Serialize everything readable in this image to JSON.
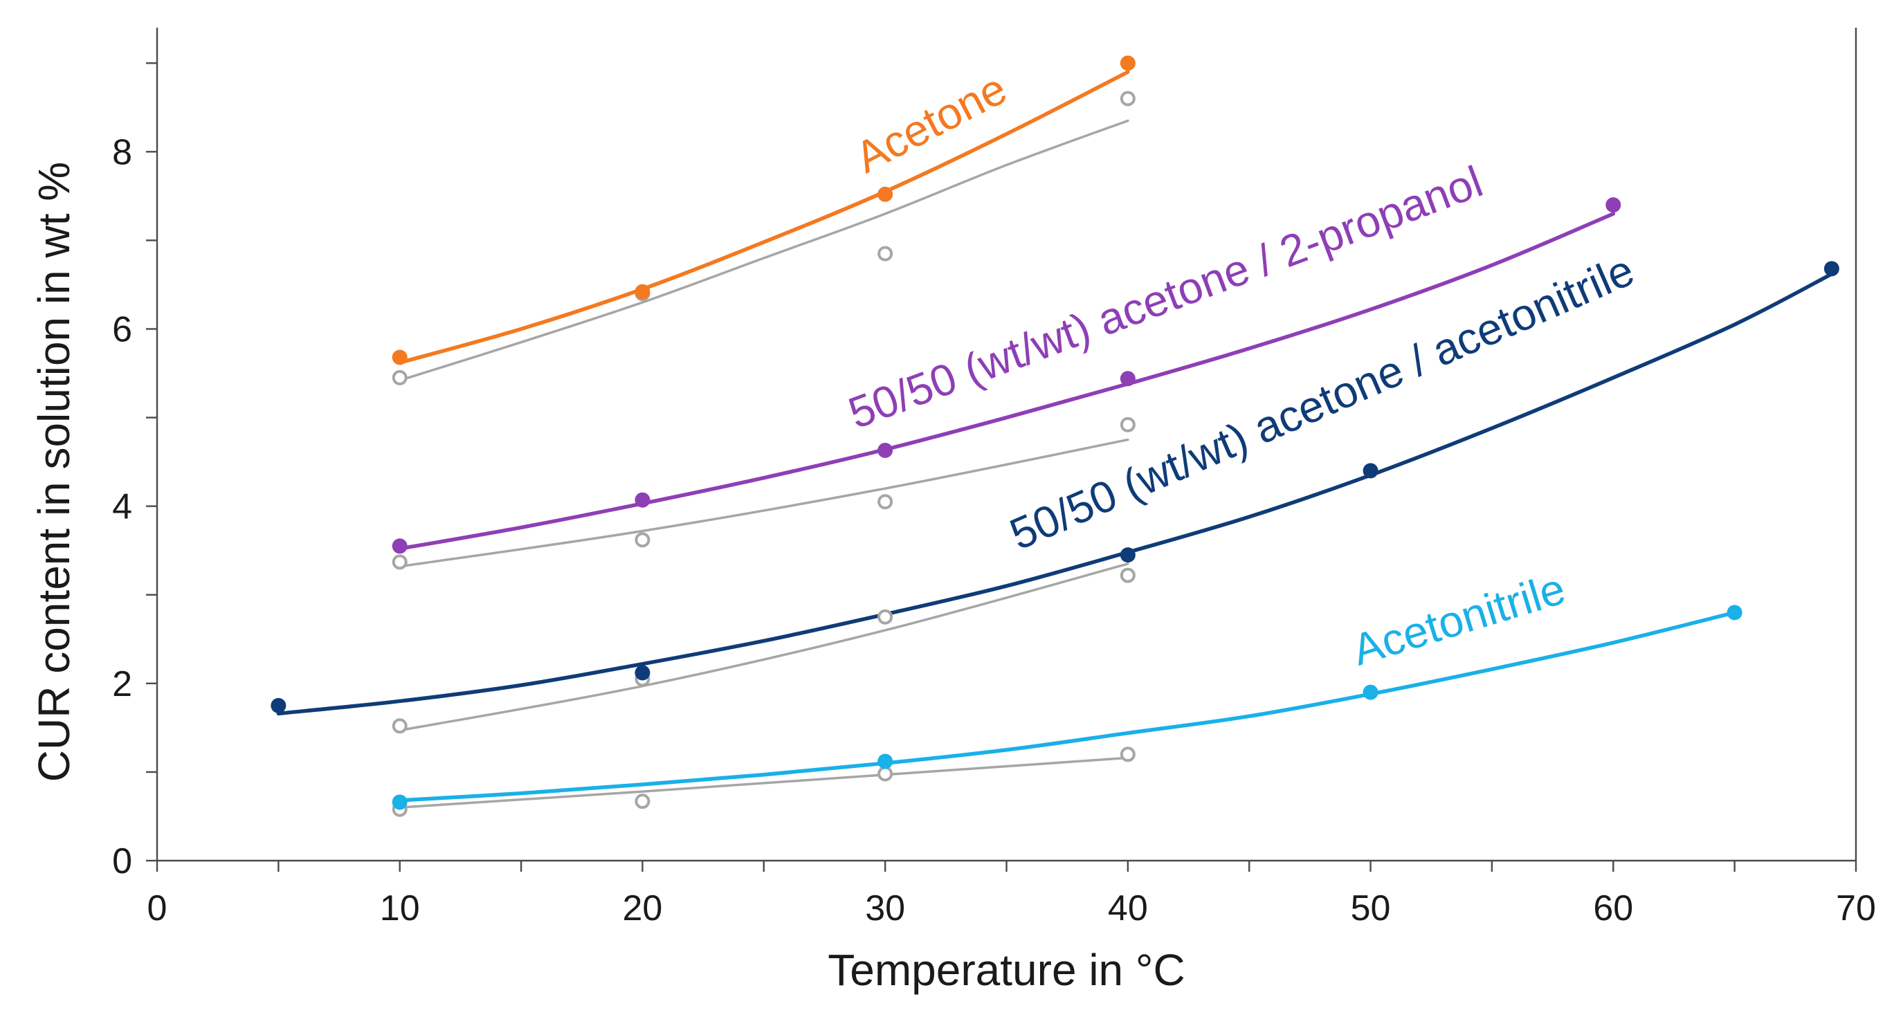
{
  "chart_data": {
    "type": "scatter",
    "title": "",
    "xlabel": "Temperature in °C",
    "ylabel": "CUR content in solution in wt %",
    "xlim": [
      0,
      70
    ],
    "ylim": [
      0,
      9.4
    ],
    "x_ticks": [
      0,
      10,
      20,
      30,
      40,
      50,
      60,
      70
    ],
    "y_ticks": [
      0,
      2,
      4,
      6,
      8
    ],
    "grid": false,
    "legend": "none",
    "series": [
      {
        "name": "Acetone",
        "color": "#f47920",
        "marker": "filled",
        "x": [
          10,
          20,
          30,
          40
        ],
        "y": [
          5.68,
          6.42,
          7.52,
          9.0
        ],
        "fit": [
          [
            10,
            5.62
          ],
          [
            15,
            6.0
          ],
          [
            20,
            6.45
          ],
          [
            25,
            6.98
          ],
          [
            30,
            7.55
          ],
          [
            35,
            8.2
          ],
          [
            40,
            8.9
          ]
        ]
      },
      {
        "color": "#a6a6a6",
        "marker": "open",
        "x": [
          10,
          20,
          30,
          40
        ],
        "y": [
          5.45,
          6.4,
          6.85,
          8.6
        ],
        "fit": [
          [
            10,
            5.42
          ],
          [
            15,
            5.85
          ],
          [
            20,
            6.3
          ],
          [
            25,
            6.8
          ],
          [
            30,
            7.3
          ],
          [
            35,
            7.85
          ],
          [
            40,
            8.35
          ]
        ]
      },
      {
        "name": "50/50 (wt/wt) acetone / 2-propanol",
        "color": "#8e3fb5",
        "marker": "filled",
        "x": [
          10,
          20,
          30,
          40,
          60
        ],
        "y": [
          3.55,
          4.07,
          4.63,
          5.44,
          7.4
        ],
        "fit": [
          [
            10,
            3.52
          ],
          [
            15,
            3.76
          ],
          [
            20,
            4.03
          ],
          [
            25,
            4.32
          ],
          [
            30,
            4.64
          ],
          [
            35,
            5.0
          ],
          [
            40,
            5.38
          ],
          [
            45,
            5.78
          ],
          [
            50,
            6.22
          ],
          [
            55,
            6.72
          ],
          [
            60,
            7.3
          ]
        ]
      },
      {
        "color": "#a6a6a6",
        "marker": "open",
        "x": [
          10,
          20,
          30,
          40
        ],
        "y": [
          3.37,
          3.62,
          4.05,
          4.92
        ],
        "fit": [
          [
            10,
            3.32
          ],
          [
            20,
            3.72
          ],
          [
            30,
            4.2
          ],
          [
            40,
            4.75
          ]
        ]
      },
      {
        "name": "50/50 (wt/wt) acetone / acetonitrile",
        "color": "#0f3c78",
        "marker": "filled",
        "x": [
          5,
          20,
          40,
          50,
          69
        ],
        "y": [
          1.75,
          2.12,
          3.45,
          4.4,
          6.68
        ],
        "fit": [
          [
            5,
            1.66
          ],
          [
            10,
            1.8
          ],
          [
            15,
            1.98
          ],
          [
            20,
            2.22
          ],
          [
            25,
            2.48
          ],
          [
            30,
            2.78
          ],
          [
            35,
            3.1
          ],
          [
            40,
            3.48
          ],
          [
            45,
            3.88
          ],
          [
            50,
            4.35
          ],
          [
            55,
            4.88
          ],
          [
            60,
            5.45
          ],
          [
            65,
            6.05
          ],
          [
            69,
            6.62
          ]
        ]
      },
      {
        "color": "#a6a6a6",
        "marker": "open",
        "x": [
          10,
          20,
          30,
          40
        ],
        "y": [
          1.52,
          2.05,
          2.75,
          3.22
        ],
        "fit": [
          [
            10,
            1.47
          ],
          [
            20,
            1.97
          ],
          [
            30,
            2.6
          ],
          [
            40,
            3.35
          ]
        ]
      },
      {
        "name": "Acetonitrile",
        "color": "#1ab0e8",
        "marker": "filled",
        "x": [
          10,
          30,
          50,
          65
        ],
        "y": [
          0.66,
          1.12,
          1.9,
          2.8
        ],
        "fit": [
          [
            10,
            0.68
          ],
          [
            15,
            0.76
          ],
          [
            20,
            0.86
          ],
          [
            25,
            0.97
          ],
          [
            30,
            1.1
          ],
          [
            35,
            1.25
          ],
          [
            40,
            1.44
          ],
          [
            45,
            1.63
          ],
          [
            50,
            1.88
          ],
          [
            55,
            2.16
          ],
          [
            60,
            2.46
          ],
          [
            65,
            2.8
          ]
        ]
      },
      {
        "color": "#a6a6a6",
        "marker": "open",
        "x": [
          10,
          20,
          30,
          40
        ],
        "y": [
          0.58,
          0.67,
          0.98,
          1.2
        ],
        "fit": [
          [
            10,
            0.6
          ],
          [
            20,
            0.78
          ],
          [
            30,
            0.97
          ],
          [
            40,
            1.16
          ]
        ]
      }
    ]
  }
}
